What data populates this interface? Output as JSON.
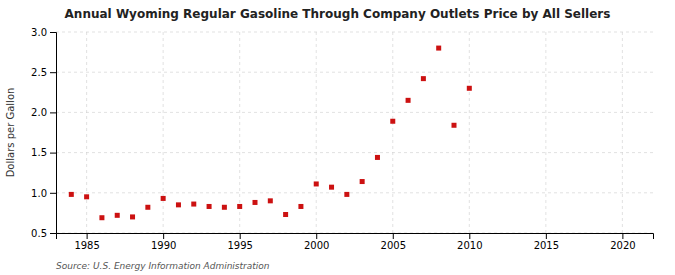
{
  "chart_data": {
    "type": "scatter",
    "title": "Annual Wyoming Regular Gasoline Through Company Outlets Price by All Sellers",
    "ylabel": "Dollars per Gallon",
    "source": "Source: U.S. Energy Information Administration",
    "x": [
      1984,
      1985,
      1986,
      1987,
      1988,
      1989,
      1990,
      1991,
      1992,
      1993,
      1994,
      1995,
      1996,
      1997,
      1998,
      1999,
      2000,
      2001,
      2002,
      2003,
      2004,
      2005,
      2006,
      2007,
      2008,
      2009,
      2010
    ],
    "values": [
      0.98,
      0.95,
      0.69,
      0.72,
      0.7,
      0.82,
      0.93,
      0.85,
      0.86,
      0.83,
      0.82,
      0.83,
      0.88,
      0.9,
      0.73,
      0.83,
      1.11,
      1.07,
      0.98,
      1.14,
      1.44,
      1.89,
      2.15,
      2.42,
      2.8,
      1.84,
      2.3
    ],
    "color": "#cc1111",
    "marker": "square",
    "xlim": [
      1983,
      2022
    ],
    "ylim": [
      0.5,
      3.0
    ],
    "xticks": [
      1985,
      1990,
      1995,
      2000,
      2005,
      2010,
      2015,
      2020
    ],
    "yticks": [
      0.5,
      {
        "value": 1.0,
        "label": "1.0"
      },
      1.5,
      {
        "value": 2.0,
        "label": "2.0"
      },
      2.5,
      {
        "value": 3.0,
        "label": "3.0"
      }
    ],
    "grid": true
  }
}
